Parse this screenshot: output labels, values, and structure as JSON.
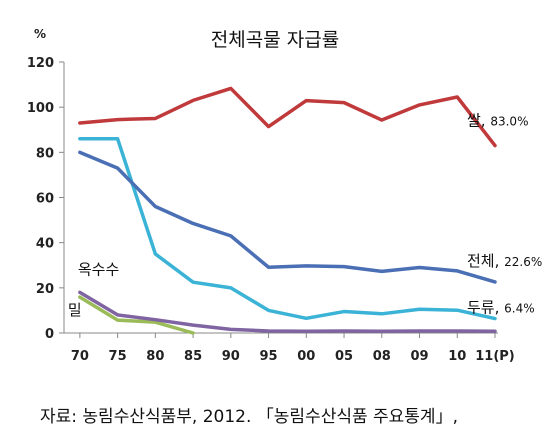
{
  "chart_data": {
    "type": "line",
    "title": "전체곡물 자급률",
    "ylabel": "%",
    "xlabel": "",
    "ylim": [
      0,
      120
    ],
    "yticks": [
      0,
      20,
      40,
      60,
      80,
      100,
      120
    ],
    "categories": [
      "70",
      "75",
      "80",
      "85",
      "90",
      "95",
      "00",
      "05",
      "08",
      "09",
      "10",
      "11(P)"
    ],
    "grid": false,
    "legend": "inline labels at line ends",
    "series": [
      {
        "name": "쌀",
        "color": "#c0393b",
        "end_label": "쌀, 83.0%",
        "values": [
          93,
          94.5,
          95,
          103,
          108.3,
          91.4,
          102.9,
          102,
          94.3,
          101,
          104.5,
          83.0
        ]
      },
      {
        "name": "전체",
        "color": "#4a6fb5",
        "end_label": "전체, 22.6%",
        "values": [
          80,
          73,
          56,
          48.5,
          43,
          29.1,
          29.7,
          29.4,
          27.3,
          29,
          27.5,
          22.6
        ]
      },
      {
        "name": "두류",
        "color": "#3bb3d6",
        "end_label": "두류, 6.4%",
        "values": [
          86,
          86,
          35,
          22.5,
          20,
          10,
          6.5,
          9.5,
          8.5,
          10.5,
          10.1,
          6.4
        ]
      },
      {
        "name": "옥수수",
        "color": "#8064a2",
        "end_label": "",
        "values": [
          18,
          8,
          5.9,
          3.5,
          1.6,
          0.9,
          0.8,
          0.9,
          0.8,
          0.9,
          0.9,
          0.8
        ]
      },
      {
        "name": "밀",
        "color": "#9bbb59",
        "end_label": "",
        "values": [
          15.9,
          5.7,
          4.8,
          0,
          null,
          null,
          null,
          null,
          null,
          null,
          null,
          null
        ]
      }
    ],
    "start_labels": [
      {
        "series": "옥수수",
        "text": "옥수수"
      },
      {
        "series": "밀",
        "text": "밀"
      }
    ]
  },
  "source": "자료: 농림수산식품부, 2012. 「농림수산식품 주요통계」,"
}
